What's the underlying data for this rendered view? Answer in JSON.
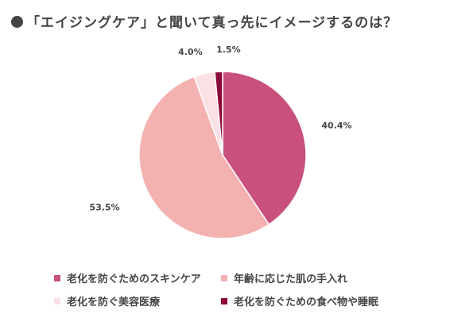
{
  "title": "「エイジングケア」と聞いて真っ先にイメージするのは？",
  "chart_data": {
    "type": "pie",
    "title": "「エイジングケア」と聞いて真っ先にイメージするのは？",
    "start_angle_deg": 0,
    "direction": "clockwise",
    "legend_position": "bottom",
    "slices": [
      {
        "label": "老化を防ぐためのスキンケア",
        "value": 40.4,
        "display": "40.4%",
        "color": "#c94f7c"
      },
      {
        "label": "年齢に応じた肌の手入れ",
        "value": 53.5,
        "display": "53.5%",
        "color": "#f3b2b0"
      },
      {
        "label": "老化を防ぐ美容医療",
        "value": 4.0,
        "display": "4.0%",
        "color": "#fbe0e6"
      },
      {
        "label": "老化を防ぐための食べ物や睡眠",
        "value": 1.5,
        "display": "1.5%",
        "color": "#8b0a3a"
      }
    ]
  }
}
